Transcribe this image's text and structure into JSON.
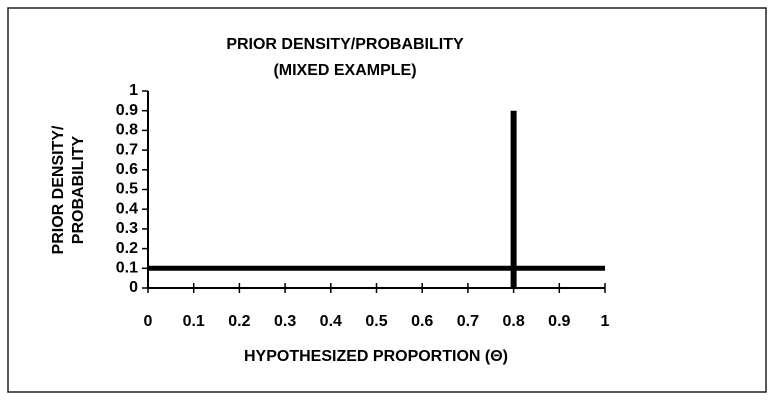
{
  "chart_data": {
    "type": "line",
    "title": "PRIOR DENSITY/PROBABILITY",
    "subtitle": "(MIXED EXAMPLE)",
    "ylabel": [
      "PRIOR DENSITY/",
      "PROBABILITY"
    ],
    "xlabel": "HYPOTHESIZED PROPORTION (Θ)",
    "series": [
      {
        "x": [
          0,
          1
        ],
        "values": [
          0.1,
          0.1
        ],
        "color": "#000000",
        "style": "line"
      },
      {
        "x": [
          0.8
        ],
        "values": [
          0.9
        ],
        "color": "#000000",
        "style": "spike"
      }
    ],
    "xlim": [
      0,
      1
    ],
    "xticks": [
      0,
      0.1,
      0.2,
      0.3,
      0.4,
      0.5,
      0.6,
      0.7,
      0.8,
      0.9,
      1
    ],
    "ylim": [
      0,
      1
    ],
    "yticks": [
      0,
      0.1,
      0.2,
      0.3,
      0.4,
      0.5,
      0.6,
      0.7,
      0.8,
      0.9,
      1
    ],
    "grid": false
  }
}
